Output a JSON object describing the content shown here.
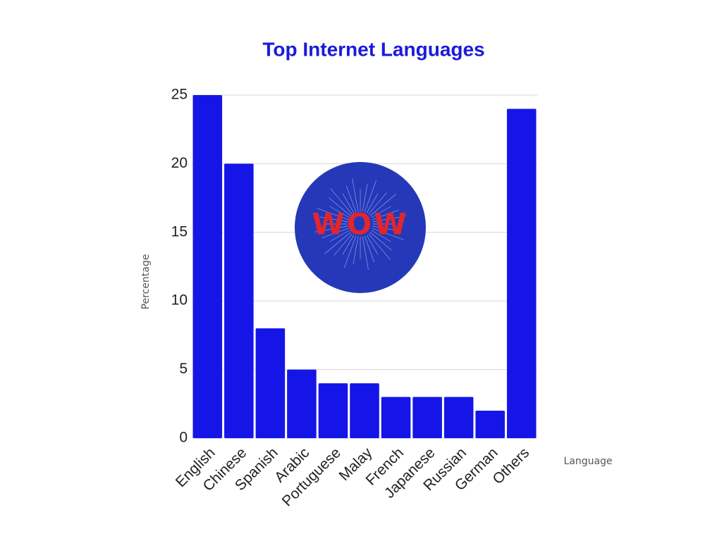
{
  "chart_data": {
    "type": "bar",
    "title": "Top Internet Languages",
    "x_label": "Language",
    "y_label": "Percentage",
    "categories": [
      "English",
      "Chinese",
      "Spanish",
      "Arabic",
      "Portuguese",
      "Malay",
      "French",
      "Japanese",
      "Russian",
      "German",
      "Others"
    ],
    "values": [
      25,
      20,
      8,
      5,
      4,
      4,
      3,
      3,
      3,
      2,
      24
    ],
    "color": "#1515e8",
    "ylim": [
      0,
      25
    ],
    "yticks": [
      0,
      5,
      10,
      15,
      20,
      25
    ],
    "grid": true,
    "annotation": "WOW"
  }
}
